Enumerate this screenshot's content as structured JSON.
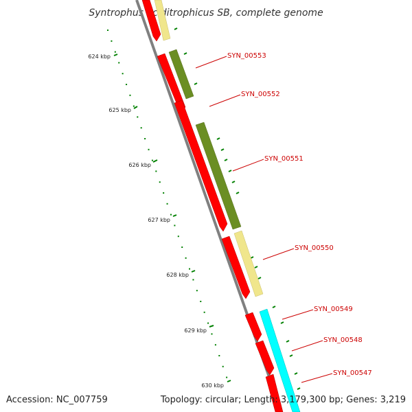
{
  "title": "Syntrophus aciditrophicus SB, complete genome",
  "footer": {
    "accession": "Accession: NC_007759",
    "summary": "Topology: circular; Length: 3,179,300 bp; Genes: 3,219"
  },
  "scale_labels": [
    "624 kbp",
    "625 kbp",
    "626 kbp",
    "627 kbp",
    "628 kbp",
    "629 kbp",
    "630 kbp"
  ],
  "gene_labels": [
    "SYN_00553",
    "SYN_00552",
    "SYN_00551",
    "SYN_00550",
    "SYN_00549",
    "SYN_00548",
    "SYN_00547"
  ],
  "colors": {
    "cds": "#ff0000",
    "olive_feature": "#6b8e23",
    "khaki_feature": "#f0e68c",
    "cyan_feature": "#00ffff",
    "backbone": "#808080",
    "scale": "#008000",
    "label": "#cc0000"
  }
}
